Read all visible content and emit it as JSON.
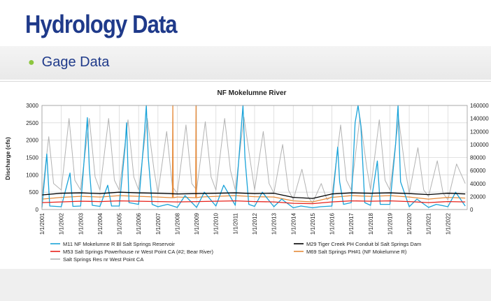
{
  "slide": {
    "title": "Hydrology Data",
    "bullet": "Gage Data"
  },
  "colors": {
    "title": "#1f3a8a",
    "bullet_dot": "#8cc63f",
    "m11": "#1aa3d9",
    "m29": "#000000",
    "m53": "#e8221b",
    "m69": "#e58a3a",
    "reservoir": "#b3b3b3"
  },
  "chart_data": {
    "type": "line",
    "title": "NF Mokelumne River",
    "ylabel": "Discharge (cfs)",
    "y2label": "",
    "ylim": [
      0,
      3000
    ],
    "y2lim": [
      0,
      160000
    ],
    "yticks": [
      "0",
      "500",
      "1000",
      "1500",
      "2000",
      "2500",
      "3000"
    ],
    "y2ticks": [
      "0",
      "20000",
      "40000",
      "60000",
      "80000",
      "100000",
      "120000",
      "140000",
      "160000"
    ],
    "xticks": [
      "1/1/2001",
      "1/1/2002",
      "1/1/2003",
      "1/1/2004",
      "1/1/2005",
      "1/1/2006",
      "1/1/2007",
      "1/1/2008",
      "1/1/2009",
      "1/1/2010",
      "1/1/2011",
      "1/1/2012",
      "1/1/2013",
      "1/1/2014",
      "1/1/2015",
      "1/1/2016",
      "1/1/2017",
      "1/1/2018",
      "1/1/2019",
      "1/1/2020",
      "1/1/2021",
      "1/1/2022"
    ],
    "grid": true,
    "legend_position": "bottom",
    "series": [
      {
        "name": "M11 NF Mokelumne R Bl Salt Springs Reservoir",
        "axis": "left",
        "color": "#1aa3d9",
        "x": [
          2001.0,
          2001.25,
          2001.4,
          2002.0,
          2002.45,
          2002.6,
          2003.0,
          2003.35,
          2003.45,
          2003.6,
          2004.0,
          2004.4,
          2004.6,
          2005.0,
          2005.3,
          2005.38,
          2005.5,
          2006.0,
          2006.3,
          2006.4,
          2006.5,
          2006.7,
          2007.0,
          2007.5,
          2008.0,
          2008.4,
          2009.0,
          2009.4,
          2010.0,
          2010.4,
          2011.0,
          2011.3,
          2011.4,
          2011.5,
          2011.7,
          2012.0,
          2012.4,
          2013.0,
          2013.4,
          2014.0,
          2014.4,
          2015.0,
          2015.4,
          2016.0,
          2016.3,
          2016.4,
          2016.6,
          2017.0,
          2017.2,
          2017.35,
          2017.5,
          2017.7,
          2018.0,
          2018.35,
          2018.5,
          2019.0,
          2019.3,
          2019.42,
          2019.55,
          2020.0,
          2020.4,
          2021.0,
          2021.4,
          2022.0,
          2022.4,
          2022.9
        ],
        "y": [
          60,
          1600,
          100,
          80,
          1050,
          90,
          100,
          2650,
          1200,
          120,
          90,
          700,
          100,
          100,
          1800,
          2500,
          200,
          150,
          2200,
          3000,
          1500,
          150,
          80,
          150,
          60,
          400,
          60,
          500,
          100,
          700,
          120,
          2300,
          3000,
          1500,
          150,
          90,
          500,
          80,
          300,
          50,
          100,
          50,
          80,
          100,
          1800,
          800,
          150,
          200,
          2500,
          3000,
          2400,
          200,
          120,
          1400,
          150,
          150,
          1900,
          3000,
          800,
          80,
          300,
          60,
          150,
          80,
          500,
          100
        ]
      },
      {
        "name": "M29 Tiger Creek PH Conduit bl Salt Springs Dam",
        "axis": "left",
        "color": "#000000",
        "x": [
          2001.0,
          2002.0,
          2003.0,
          2004.0,
          2005.0,
          2006.0,
          2007.0,
          2008.0,
          2009.0,
          2010.0,
          2011.0,
          2012.0,
          2013.0,
          2014.0,
          2015.0,
          2016.0,
          2017.0,
          2018.0,
          2019.0,
          2020.0,
          2021.0,
          2022.0,
          2022.9
        ],
        "y": [
          420,
          470,
          480,
          460,
          500,
          480,
          470,
          450,
          460,
          470,
          480,
          460,
          470,
          350,
          320,
          450,
          480,
          470,
          480,
          460,
          430,
          470,
          450
        ]
      },
      {
        "name": "M53 Salt Springs Powerhouse nr West Point CA (#2; Bear River)",
        "axis": "left",
        "color": "#e8221b",
        "x": [
          2001.0,
          2002.0,
          2003.0,
          2004.0,
          2005.0,
          2006.0,
          2007.0,
          2008.0,
          2009.0,
          2010.0,
          2011.0,
          2012.0,
          2013.0,
          2014.0,
          2015.0,
          2016.0,
          2017.0,
          2018.0,
          2019.0,
          2020.0,
          2021.0,
          2022.0,
          2022.9
        ],
        "y": [
          200,
          220,
          240,
          230,
          250,
          240,
          230,
          220,
          230,
          240,
          250,
          230,
          220,
          180,
          170,
          220,
          250,
          240,
          250,
          230,
          200,
          230,
          220
        ]
      },
      {
        "name": "M69 Salt Springs PH#1 (NF Mokelumne R)",
        "axis": "left",
        "color": "#e58a3a",
        "x": [
          2001.0,
          2002.0,
          2003.0,
          2004.0,
          2005.0,
          2006.0,
          2007.0,
          2007.75,
          2007.77,
          2007.79,
          2008.0,
          2008.95,
          2008.97,
          2008.99,
          2009.2,
          2010.0,
          2011.0,
          2012.0,
          2013.0,
          2014.0,
          2015.0,
          2016.0,
          2017.0,
          2018.0,
          2019.0,
          2020.0,
          2021.0,
          2022.0,
          2022.9
        ],
        "y": [
          300,
          350,
          380,
          360,
          400,
          380,
          360,
          340,
          3000,
          340,
          360,
          340,
          3000,
          340,
          360,
          380,
          400,
          370,
          360,
          250,
          220,
          350,
          400,
          380,
          400,
          360,
          300,
          350,
          330
        ]
      },
      {
        "name": "Salt Springs Res nr West Point CA",
        "axis": "right",
        "color": "#b3b3b3",
        "x": [
          2001.0,
          2001.35,
          2001.6,
          2002.0,
          2002.4,
          2002.7,
          2003.0,
          2003.45,
          2003.75,
          2004.0,
          2004.45,
          2004.75,
          2005.0,
          2005.45,
          2005.75,
          2006.0,
          2006.45,
          2006.8,
          2007.0,
          2007.45,
          2007.75,
          2008.0,
          2008.45,
          2008.75,
          2009.0,
          2009.45,
          2009.75,
          2010.0,
          2010.45,
          2010.75,
          2011.0,
          2011.45,
          2011.8,
          2012.0,
          2012.45,
          2012.75,
          2013.0,
          2013.45,
          2013.75,
          2014.0,
          2014.45,
          2014.75,
          2015.0,
          2015.45,
          2015.75,
          2016.0,
          2016.45,
          2016.75,
          2017.0,
          2017.45,
          2017.8,
          2018.0,
          2018.45,
          2018.75,
          2019.0,
          2019.45,
          2019.8,
          2020.0,
          2020.45,
          2020.75,
          2021.0,
          2021.45,
          2021.75,
          2022.0,
          2022.45,
          2022.9
        ],
        "y": [
          20000,
          112000,
          40000,
          30000,
          140000,
          45000,
          30000,
          140000,
          50000,
          30000,
          140000,
          45000,
          30000,
          138000,
          50000,
          30000,
          140000,
          60000,
          25000,
          120000,
          35000,
          25000,
          130000,
          40000,
          30000,
          135000,
          50000,
          30000,
          140000,
          60000,
          30000,
          142000,
          70000,
          30000,
          120000,
          40000,
          25000,
          100000,
          30000,
          15000,
          62000,
          20000,
          10000,
          40000,
          15000,
          20000,
          130000,
          45000,
          30000,
          142000,
          65000,
          30000,
          138000,
          45000,
          30000,
          140000,
          60000,
          25000,
          95000,
          30000,
          20000,
          75000,
          25000,
          15000,
          70000,
          40000
        ]
      }
    ]
  }
}
